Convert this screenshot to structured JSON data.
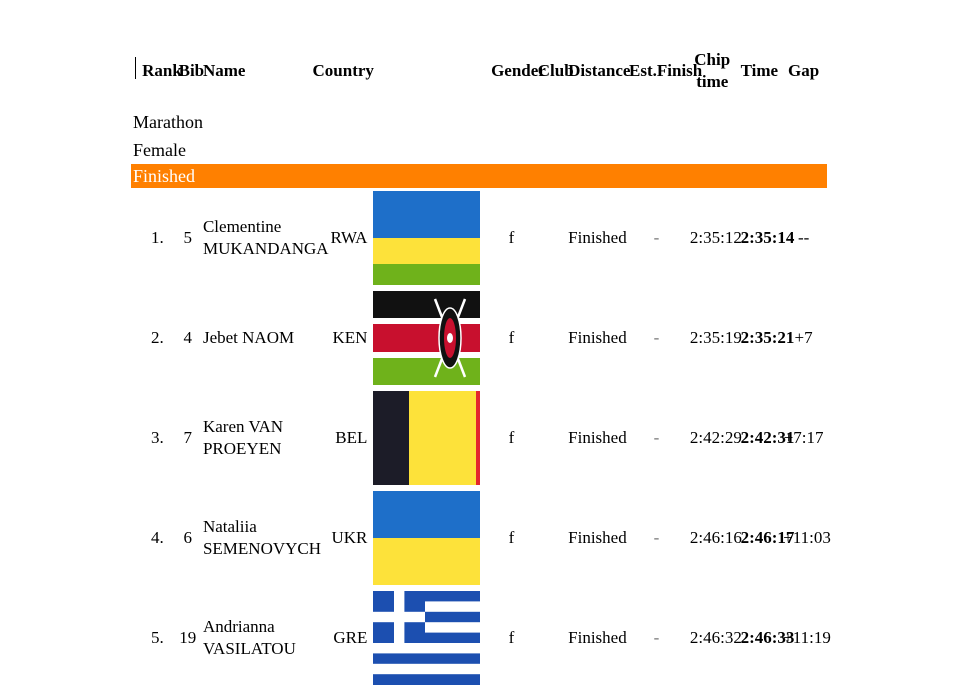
{
  "columns": {
    "rank": "Rank",
    "bib": "Bib",
    "name": "Name",
    "country": "Country",
    "gender": "Gender",
    "club": "Club",
    "distance": "Distance",
    "est_finish": "Est.Finish",
    "chip_time": "Chip time",
    "time": "Time",
    "gap": "Gap"
  },
  "race": "Marathon",
  "category": "Female",
  "status": "Finished",
  "status_color": "#ff8000",
  "rows": [
    {
      "rank": "1.",
      "bib": "5",
      "name": "Clementine MUKANDANGA",
      "country": "RWA",
      "flag": "rwanda-flag-icon",
      "gender": "f",
      "distance": "Finished",
      "est": "-",
      "chip": "2:35:12",
      "time": "2:35:14",
      "gap": "--"
    },
    {
      "rank": "2.",
      "bib": "4",
      "name": "Jebet NAOM",
      "country": "KEN",
      "flag": "kenya-flag-icon",
      "gender": "f",
      "distance": "Finished",
      "est": "-",
      "chip": "2:35:19",
      "time": "2:35:21",
      "gap": "+7"
    },
    {
      "rank": "3.",
      "bib": "7",
      "name": "Karen VAN PROEYEN",
      "country": "BEL",
      "flag": "belgium-flag-icon",
      "gender": "f",
      "distance": "Finished",
      "est": "-",
      "chip": "2:42:29",
      "time": "2:42:31",
      "gap": "+7:17"
    },
    {
      "rank": "4.",
      "bib": "6",
      "name": "Nataliia SEMENOVYCH",
      "country": "UKR",
      "flag": "ukraine-flag-icon",
      "gender": "f",
      "distance": "Finished",
      "est": "-",
      "chip": "2:46:16",
      "time": "2:46:17",
      "gap": "+11:03"
    },
    {
      "rank": "5.",
      "bib": "19",
      "name": "Andrianna VASILATOU",
      "country": "GRE",
      "flag": "greece-flag-icon",
      "gender": "f",
      "distance": "Finished",
      "est": "-",
      "chip": "2:46:32",
      "time": "2:46:33",
      "gap": "+11:19"
    }
  ]
}
